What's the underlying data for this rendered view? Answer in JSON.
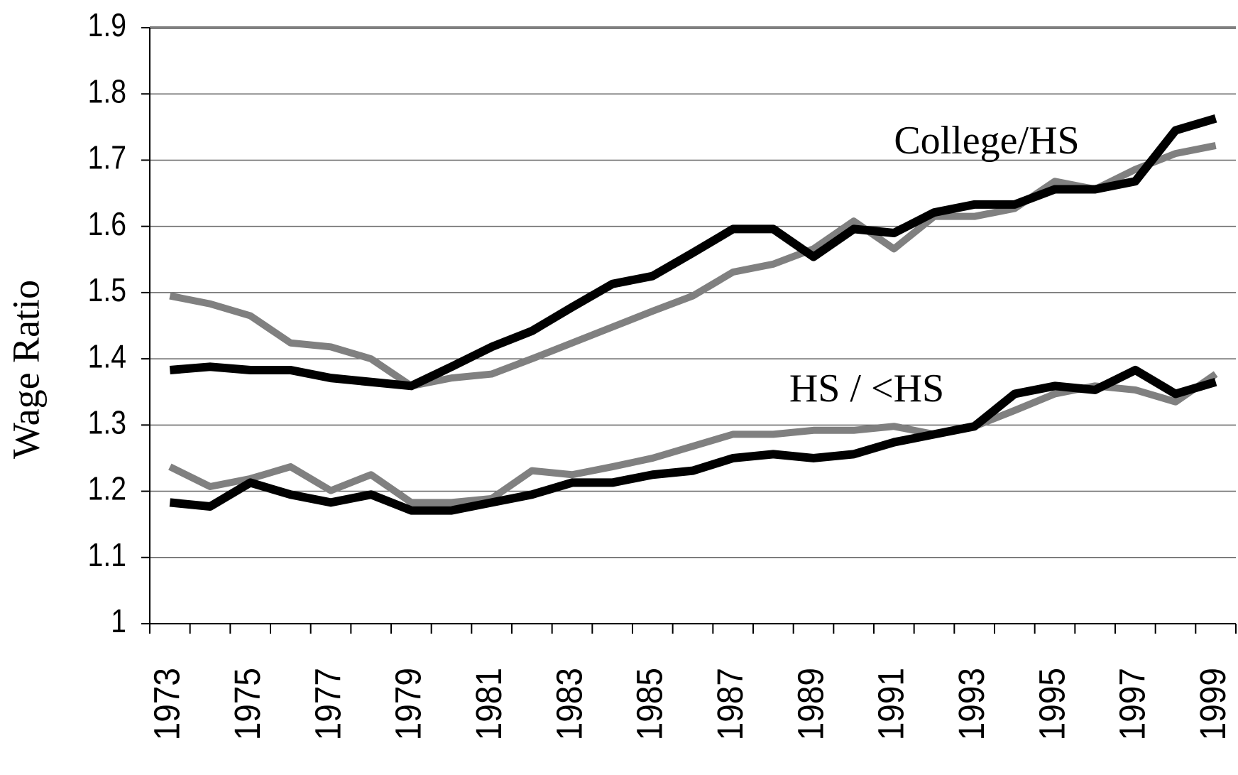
{
  "chart_data": {
    "type": "line",
    "y_label": "Wage Ratio",
    "annotations": [
      "College/HS",
      "HS / <HS"
    ],
    "categories": [
      "1973",
      null,
      "1975",
      null,
      "1977",
      null,
      "1979",
      null,
      "1981",
      null,
      "1983",
      null,
      "1985",
      null,
      "1987",
      null,
      "1989",
      null,
      "1991",
      null,
      "1993",
      null,
      "1995",
      null,
      "1997",
      null,
      "1999"
    ],
    "series": [
      {
        "color": "#808080",
        "values": [
          1.495,
          1.483,
          1.465,
          1.424,
          1.418,
          1.4,
          1.359,
          1.371,
          1.377,
          1.4,
          1.424,
          1.448,
          1.472,
          1.495,
          1.531,
          1.543,
          1.566,
          1.608,
          1.566,
          1.615,
          1.615,
          1.627,
          1.668,
          1.656,
          1.686,
          1.71,
          1.722
        ]
      },
      {
        "color": "#000000",
        "values": [
          1.383,
          1.388,
          1.383,
          1.383,
          1.371,
          1.365,
          1.359,
          1.388,
          1.418,
          1.442,
          1.478,
          1.513,
          1.525,
          1.56,
          1.596,
          1.596,
          1.554,
          1.596,
          1.59,
          1.621,
          1.633,
          1.633,
          1.656,
          1.656,
          1.668,
          1.745,
          1.763
        ]
      },
      {
        "color": "#808080",
        "values": [
          1.237,
          1.207,
          1.219,
          1.237,
          1.201,
          1.225,
          1.183,
          1.183,
          1.189,
          1.231,
          1.225,
          1.237,
          1.25,
          1.268,
          1.286,
          1.286,
          1.292,
          1.292,
          1.298,
          1.286,
          1.298,
          1.322,
          1.347,
          1.359,
          1.353,
          1.335,
          1.377
        ]
      },
      {
        "color": "#000000",
        "values": [
          1.183,
          1.177,
          1.213,
          1.195,
          1.183,
          1.195,
          1.171,
          1.171,
          1.183,
          1.195,
          1.213,
          1.213,
          1.225,
          1.231,
          1.25,
          1.256,
          1.25,
          1.256,
          1.274,
          1.286,
          1.298,
          1.347,
          1.359,
          1.353,
          1.383,
          1.347,
          1.365
        ]
      }
    ],
    "ylim": [
      1,
      1.9
    ],
    "yticks": [
      1,
      1.1,
      1.2,
      1.3,
      1.4,
      1.5,
      1.6,
      1.7,
      1.8,
      1.9
    ],
    "grid": true
  }
}
